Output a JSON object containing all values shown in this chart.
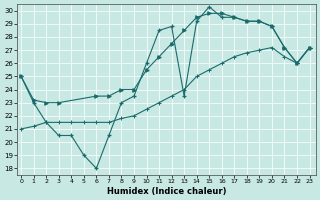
{
  "xlabel": "Humidex (Indice chaleur)",
  "background_color": "#c8e8e4",
  "line_color": "#1a6b6b",
  "xlim": [
    -0.3,
    23.5
  ],
  "ylim": [
    17.5,
    30.5
  ],
  "xticks": [
    0,
    1,
    2,
    3,
    4,
    5,
    6,
    7,
    8,
    9,
    10,
    11,
    12,
    13,
    14,
    15,
    16,
    17,
    18,
    19,
    20,
    21,
    22,
    23
  ],
  "yticks": [
    18,
    19,
    20,
    21,
    22,
    23,
    24,
    25,
    26,
    27,
    28,
    29,
    30
  ],
  "series1_zigzag": {
    "x": [
      0,
      1,
      2,
      3,
      4,
      5,
      6,
      7,
      8,
      9,
      10,
      11,
      12,
      13,
      14,
      15,
      16,
      17,
      18,
      19,
      20,
      21,
      22,
      23
    ],
    "y": [
      25.0,
      23.0,
      21.5,
      20.5,
      20.5,
      19.0,
      18.0,
      20.5,
      23.0,
      23.5,
      26.0,
      28.5,
      28.8,
      23.5,
      29.2,
      30.3,
      29.5,
      29.5,
      29.2,
      29.2,
      28.8,
      27.2,
      26.0,
      27.2
    ]
  },
  "series2_smooth_upper": {
    "x": [
      0,
      1,
      2,
      3,
      6,
      7,
      8,
      9,
      10,
      11,
      12,
      13,
      14,
      15,
      16,
      17,
      18,
      19,
      20,
      21,
      22,
      23
    ],
    "y": [
      25.0,
      23.2,
      23.0,
      23.0,
      23.5,
      23.5,
      24.0,
      24.0,
      25.5,
      26.5,
      27.5,
      28.5,
      29.5,
      29.8,
      29.8,
      29.5,
      29.2,
      29.2,
      28.8,
      27.2,
      26.0,
      27.2
    ]
  },
  "series3_smooth_lower": {
    "x": [
      0,
      1,
      2,
      3,
      4,
      5,
      6,
      7,
      8,
      9,
      10,
      11,
      12,
      13,
      14,
      15,
      16,
      17,
      18,
      19,
      20,
      21,
      22,
      23
    ],
    "y": [
      21.0,
      21.2,
      21.5,
      21.5,
      21.5,
      21.5,
      21.5,
      21.5,
      21.8,
      22.0,
      22.5,
      23.0,
      23.5,
      24.0,
      25.0,
      25.5,
      26.0,
      26.5,
      26.8,
      27.0,
      27.2,
      26.5,
      26.0,
      27.2
    ]
  }
}
